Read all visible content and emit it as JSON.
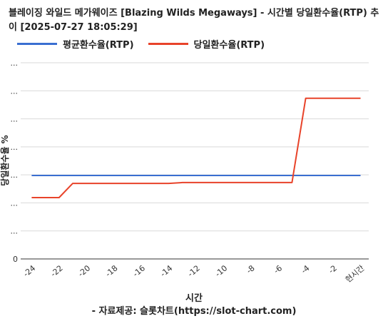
{
  "header": {
    "title": "블레이징 와일드 메가웨이즈 [Blazing Wilds Megaways] - 시간별 당일환수율(RTP) 추이 [2025-07-27 18:05:29]"
  },
  "footer": {
    "source": "- 자료제공: 슬롯차트(https://slot-chart.com)"
  },
  "chart_data": {
    "type": "line",
    "xlabel": "시간",
    "ylabel": "당일환수율 %",
    "x_ticks": [
      -24,
      -22,
      -20,
      -18,
      -16,
      -14,
      -12,
      -10,
      -8,
      -6,
      -4,
      -2,
      0
    ],
    "x_tick_labels": [
      "-24",
      "-22",
      "-20",
      "-18",
      "-16",
      "-14",
      "-12",
      "-10",
      "-8",
      "-6",
      "-4",
      "-2",
      "현시간"
    ],
    "y_tick_labels": [
      "0",
      "...",
      "...",
      "...",
      "...",
      "...",
      "...",
      "..."
    ],
    "grid": true,
    "legend_position": "top-left",
    "series": [
      {
        "name": "평균환수율(RTP)",
        "color": "#3a6fd1",
        "x": [
          -24,
          0
        ],
        "y": [
          96.5,
          96.5
        ]
      },
      {
        "name": "당일환수율(RTP)",
        "color": "#e8432a",
        "x": [
          -24,
          -22,
          -21,
          -14,
          -13,
          -5,
          -4,
          0
        ],
        "y": [
          91.2,
          91.2,
          94.6,
          94.6,
          94.8,
          94.8,
          115.0,
          115.0
        ]
      }
    ],
    "note": "y axis values unlabeled (masked with ...)"
  }
}
